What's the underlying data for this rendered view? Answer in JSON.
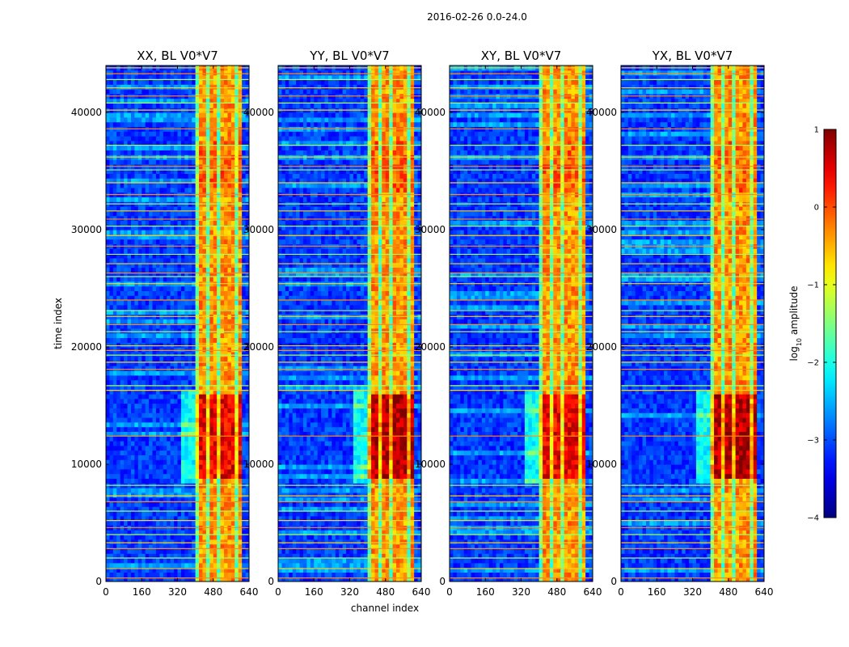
{
  "chart_data": {
    "type": "heatmap",
    "suptitle": "2016-02-26 0.0-24.0",
    "xlabel": "channel index",
    "ylabel": "time index",
    "x_range": [
      0,
      640
    ],
    "y_range": [
      0,
      44000
    ],
    "x_ticks": [
      "0",
      "160",
      "320",
      "480",
      "640"
    ],
    "y_ticks": [
      "0",
      "10000",
      "20000",
      "30000",
      "40000"
    ],
    "x_tick_values": [
      0,
      160,
      320,
      480,
      640
    ],
    "y_tick_values": [
      0,
      10000,
      20000,
      30000,
      40000
    ],
    "colormap": "jet",
    "colorbar": {
      "label": "log10 amplitude",
      "label_base": "log",
      "label_sub": "10",
      "label_rest": " amplitude",
      "range": [
        -4,
        1
      ],
      "ticks": [
        "1",
        "0",
        "−1",
        "−2",
        "−3",
        "−4"
      ],
      "tick_values": [
        1,
        0,
        -1,
        -2,
        -3,
        -4
      ]
    },
    "panels": [
      {
        "title": "XX, BL V0*V7",
        "polarization": "XX",
        "baseline": "V0*V7"
      },
      {
        "title": "YY, BL V0*V7",
        "polarization": "YY",
        "baseline": "V0*V7"
      },
      {
        "title": "XY, BL V0*V7",
        "polarization": "XY",
        "baseline": "V0*V7"
      },
      {
        "title": "YX, BL V0*V7",
        "polarization": "YX",
        "baseline": "V0*V7"
      }
    ],
    "bright_band_channels": [
      400,
      600
    ],
    "strong_region_time": [
      9000,
      16000
    ],
    "rfi_time_lines": [
      300,
      1100,
      2000,
      2800,
      3300,
      4000,
      4600,
      5200,
      6000,
      6800,
      7300,
      8200,
      12400,
      16300,
      16700,
      18100,
      18700,
      19300,
      19700,
      20100,
      21300,
      21900,
      22600,
      23100,
      24000,
      25400,
      26000,
      26300,
      27100,
      27900,
      28600,
      29500,
      30300,
      30900,
      31600,
      32200,
      33000,
      34000,
      35100,
      35400,
      36200,
      37200,
      38600,
      40200,
      40800,
      41400,
      42100,
      42800,
      43300,
      43800
    ]
  }
}
